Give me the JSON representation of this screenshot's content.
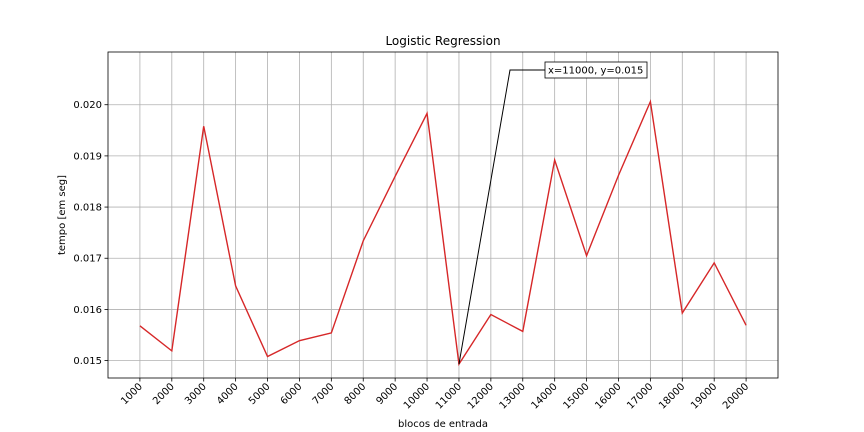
{
  "chart_data": {
    "type": "line",
    "title": "Logistic Regression",
    "xlabel": "blocos de entrada",
    "ylabel": "tempo [em seg]",
    "x": [
      1000,
      2000,
      3000,
      4000,
      5000,
      6000,
      7000,
      8000,
      9000,
      10000,
      11000,
      12000,
      13000,
      14000,
      15000,
      16000,
      17000,
      18000,
      19000,
      20000
    ],
    "xtick_labels": [
      "1000",
      "2000",
      "3000",
      "4000",
      "5000",
      "6000",
      "7000",
      "8000",
      "9000",
      "10000",
      "11000",
      "12000",
      "13000",
      "14000",
      "15000",
      "16000",
      "17000",
      "18000",
      "19000",
      "20000"
    ],
    "yticks": [
      0.015,
      0.016,
      0.017,
      0.018,
      0.019,
      0.02
    ],
    "ytick_labels": [
      "0.015",
      "0.016",
      "0.017",
      "0.018",
      "0.019",
      "0.020"
    ],
    "ylim": [
      0.01466,
      0.02103
    ],
    "xlim": [
      0,
      21000
    ],
    "grid": true,
    "series": [
      {
        "color": "#d62728",
        "values": [
          0.01568,
          0.01519,
          0.01958,
          0.01646,
          0.01508,
          0.01539,
          0.01554,
          0.01734,
          0.0186,
          0.01983,
          0.01493,
          0.0159,
          0.01557,
          0.01892,
          0.01705,
          0.01862,
          0.02006,
          0.01593,
          0.01691,
          0.01569
        ]
      }
    ],
    "annotation": {
      "text": "x=11000, y=0.015",
      "point": [
        11000,
        0.01493
      ],
      "line_color": "#000000"
    }
  }
}
